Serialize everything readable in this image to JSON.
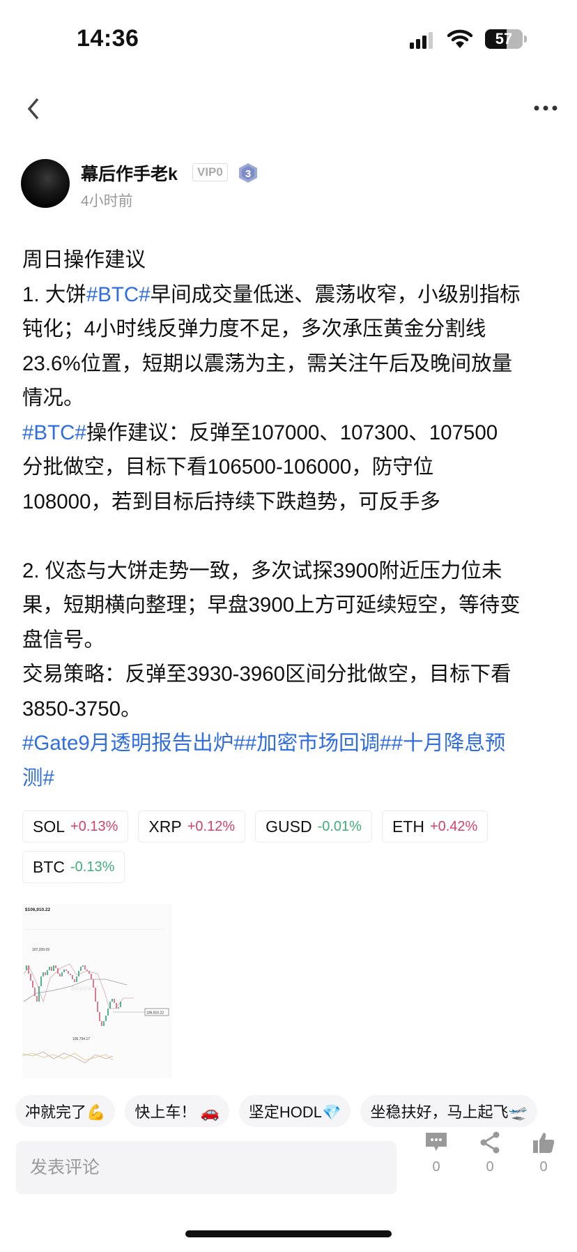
{
  "status_bar": {
    "time": "14:36",
    "battery": "57"
  },
  "nav": {
    "back_icon": "chevron-left-icon",
    "more_icon": "more-dots-icon"
  },
  "author": {
    "name": "幕后作手老k",
    "vip": "VIP0",
    "level": "3",
    "time": "4小时前"
  },
  "post": {
    "lines": [
      [
        {
          "t": "周日操作建议"
        }
      ],
      [
        {
          "t": "1. 大饼"
        },
        {
          "t": "#BTC#",
          "tag": true
        },
        {
          "t": "早间成交量低迷、震荡收窄，小级别指标"
        }
      ],
      [
        {
          "t": "钝化；4小时线反弹力度不足，多次承压黄金分割线"
        }
      ],
      [
        {
          "t": "23.6%位置，短期以震荡为主，需关注午后及晚间放量"
        }
      ],
      [
        {
          "t": "情况。"
        }
      ],
      [
        {
          "t": "#BTC#",
          "tag": true
        },
        {
          "t": "操作建议：反弹至107000、107300、107500"
        }
      ],
      [
        {
          "t": "分批做空，目标下看106500-106000，防守位"
        }
      ],
      [
        {
          "t": "108000，若到目标后持续下跌趋势，可反手多"
        }
      ],
      [],
      [
        {
          "t": "2. 仪态与大饼走势一致，多次试探3900附近压力位未"
        }
      ],
      [
        {
          "t": "果，短期横向整理；早盘3900上方可延续短空，等待变"
        }
      ],
      [
        {
          "t": "盘信号。"
        }
      ],
      [
        {
          "t": "交易策略：反弹至3930-3960区间分批做空，目标下看"
        }
      ],
      [
        {
          "t": "3850-3750。"
        }
      ],
      [
        {
          "t": "#Gate9月透明报告出炉##加密市场回调##十月降息预",
          "tag": true
        }
      ],
      [
        {
          "t": "测#",
          "tag": true
        }
      ]
    ]
  },
  "coins": [
    {
      "symbol": "SOL",
      "change": "+0.13%",
      "dir": "up"
    },
    {
      "symbol": "XRP",
      "change": "+0.12%",
      "dir": "up"
    },
    {
      "symbol": "GUSD",
      "change": "-0.01%",
      "dir": "down"
    },
    {
      "symbol": "ETH",
      "change": "+0.42%",
      "dir": "up"
    },
    {
      "symbol": "BTC",
      "change": "-0.13%",
      "dir": "down"
    }
  ],
  "chart_image": {
    "price": "$106,910.22",
    "high": "107,339.03",
    "low": "106,734.17",
    "last": "106,910.22",
    "watermark": "BINANCE"
  },
  "reactions": [
    "冲就完了💪",
    "快上车！ 🚗",
    "坚定HODL💎",
    "坐稳扶好，马上起飞🛫"
  ],
  "comment": {
    "placeholder": "发表评论"
  },
  "actions": [
    {
      "icon": "comment-icon",
      "count": "0"
    },
    {
      "icon": "share-icon",
      "count": "0"
    },
    {
      "icon": "like-icon",
      "count": "0"
    }
  ],
  "colors": {
    "hashtag": "#2f6de1",
    "up": "#d4426a",
    "down": "#3fae7a"
  }
}
